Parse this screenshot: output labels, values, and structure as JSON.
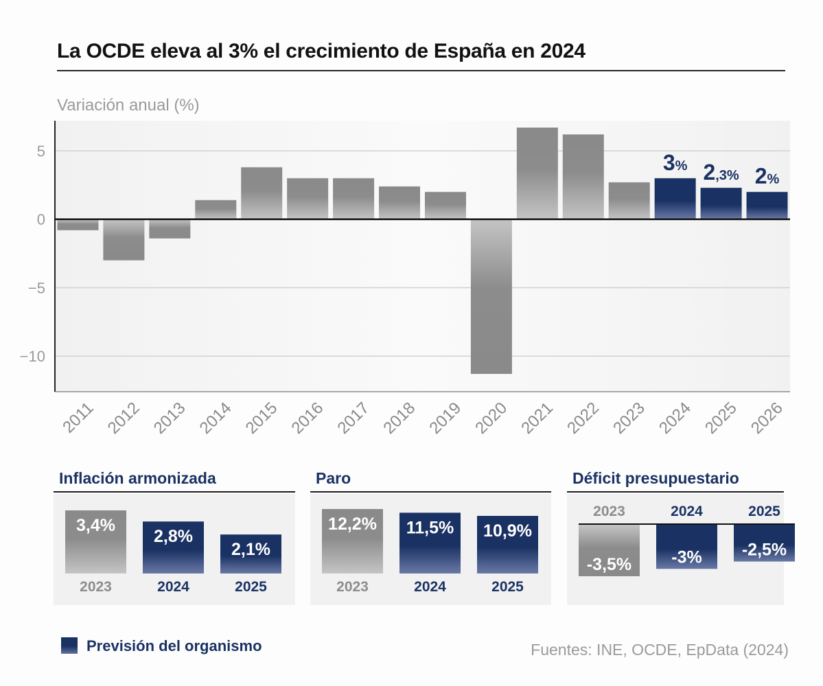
{
  "title": "La OCDE eleva al 3% el crecimiento de España en 2024",
  "chart_data": {
    "type": "bar",
    "title": "La OCDE eleva al 3% el crecimiento de España en 2024",
    "ylabel": "Variación anual (%)",
    "categories": [
      "2011",
      "2012",
      "2013",
      "2014",
      "2015",
      "2016",
      "2017",
      "2018",
      "2019",
      "2020",
      "2021",
      "2022",
      "2023",
      "2024",
      "2025",
      "2026"
    ],
    "values": [
      -0.8,
      -3.0,
      -1.4,
      1.4,
      3.8,
      3.0,
      3.0,
      2.4,
      2.0,
      -11.3,
      6.7,
      6.2,
      2.7,
      3.0,
      2.3,
      2.0
    ],
    "forecast": [
      false,
      false,
      false,
      false,
      false,
      false,
      false,
      false,
      false,
      false,
      false,
      false,
      false,
      true,
      true,
      true
    ],
    "ylim": [
      -12.6,
      7.2
    ],
    "yticks": [
      5,
      0,
      -5,
      -10
    ],
    "ytick_labels": [
      "5",
      "0",
      "−5",
      "−10"
    ],
    "annotations": [
      {
        "category": "2024",
        "number": "3",
        "unit": "%"
      },
      {
        "category": "2025",
        "number": "2",
        "unit": ",3%"
      },
      {
        "category": "2026",
        "number": "2",
        "unit": "%"
      }
    ]
  },
  "panels": [
    {
      "title": "Inflación armonizada",
      "items": [
        {
          "year": "2023",
          "label": "3,4%",
          "value": 3.4,
          "forecast": false
        },
        {
          "year": "2024",
          "label": "2,8%",
          "value": 2.8,
          "forecast": true
        },
        {
          "year": "2025",
          "label": "2,1%",
          "value": 2.1,
          "forecast": true
        }
      ]
    },
    {
      "title": "Paro",
      "items": [
        {
          "year": "2023",
          "label": "12,2%",
          "value": 12.2,
          "forecast": false
        },
        {
          "year": "2024",
          "label": "11,5%",
          "value": 11.5,
          "forecast": true
        },
        {
          "year": "2025",
          "label": "10,9%",
          "value": 10.9,
          "forecast": true
        }
      ]
    },
    {
      "title": "Déficit presupuestario",
      "items": [
        {
          "year": "2023",
          "label": "-3,5%",
          "value": -3.5,
          "forecast": false
        },
        {
          "year": "2024",
          "label": "-3%",
          "value": -3.0,
          "forecast": true
        },
        {
          "year": "2025",
          "label": "-2,5%",
          "value": -2.5,
          "forecast": true
        }
      ]
    }
  ],
  "legend": {
    "label": "Previsión del organismo"
  },
  "source": "Fuentes: INE, OCDE, EpData (2024)",
  "colors": {
    "actual": "#8c8c8c",
    "forecast": "#1a3263",
    "annotation": "#1a3263",
    "axis_text": "#9a9a9a"
  }
}
